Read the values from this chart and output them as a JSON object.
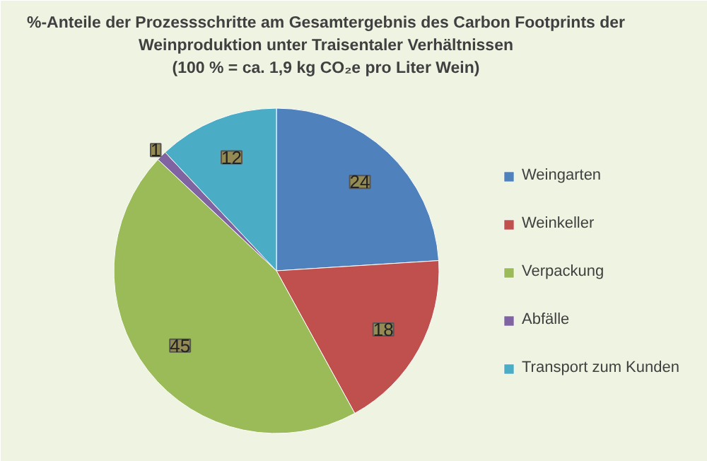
{
  "chart_data": {
    "type": "pie",
    "title": "%-Anteile der Prozessschritte am Gesamtergebnis des Carbon Footprints der\nWeinproduktion unter Traisentaler Verhältnissen\n(100 % = ca. 1,9 kg CO₂e pro Liter Wein)",
    "categories": [
      "Weingarten",
      "Weinkeller",
      "Verpackung",
      "Abfälle",
      "Transport zum Kunden"
    ],
    "values": [
      24,
      18,
      45,
      1,
      12
    ],
    "colors": [
      "#4f81bd",
      "#c0504d",
      "#9bbb59",
      "#8064a2",
      "#4bacc6"
    ],
    "data_labels": true,
    "legend": "right"
  }
}
